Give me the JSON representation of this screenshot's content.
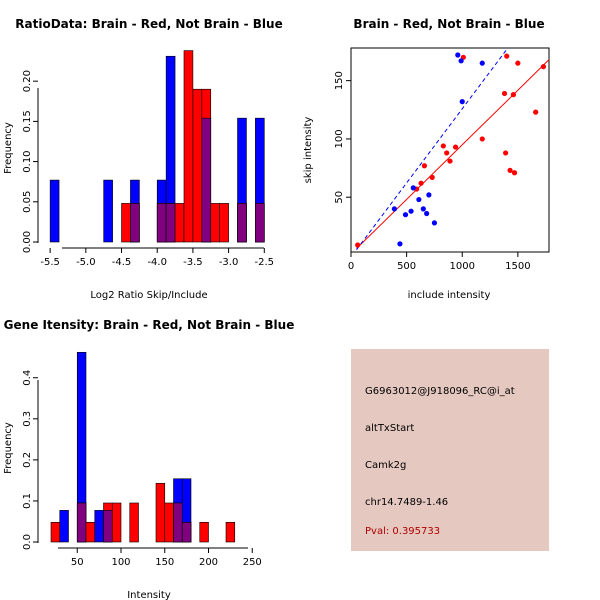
{
  "colors": {
    "brain": "#ff0000",
    "not_brain": "#0000ff",
    "overlap": "#800080",
    "panel_bg": "#e5c8c0",
    "pval_text": "#b00000"
  },
  "chart_data": [
    {
      "type": "bar",
      "title": "RatioData: Brain - Red, Not Brain - Blue",
      "xlabel": "Log2 Ratio Skip/Include",
      "ylabel": "Frequency",
      "xlim": [
        -5.6,
        -2.35
      ],
      "ylim": [
        0,
        0.24
      ],
      "xticks": [
        -5.5,
        -5.0,
        -4.5,
        -4.0,
        -3.5,
        -3.0,
        -2.5
      ],
      "xtick_labels": [
        "-5.5",
        "-5.0",
        "-4.5",
        "-4.0",
        "-3.5",
        "-3.0",
        "-2.5"
      ],
      "yticks": [
        0,
        0.05,
        0.1,
        0.15,
        0.2
      ],
      "ytick_labels": [
        "0.00",
        "0.05",
        "0.10",
        "0.15",
        "0.20"
      ],
      "bin_edges": [
        -5.5,
        -5.375,
        -5.25,
        -5.125,
        -5.0,
        -4.875,
        -4.75,
        -4.625,
        -4.5,
        -4.375,
        -4.25,
        -4.125,
        -4.0,
        -3.875,
        -3.75,
        -3.625,
        -3.5,
        -3.375,
        -3.25,
        -3.125,
        -3.0,
        -2.875,
        -2.75,
        -2.625,
        -2.5
      ],
      "series": [
        {
          "name": "Not Brain",
          "color": "#0000ff",
          "values": [
            0.077,
            0,
            0,
            0,
            0,
            0,
            0.077,
            0,
            0,
            0.077,
            0,
            0,
            0.077,
            0.231,
            0,
            0,
            0,
            0.154,
            0,
            0,
            0,
            0.154,
            0,
            0.154
          ]
        },
        {
          "name": "Brain",
          "color": "#ff0000",
          "values": [
            0,
            0,
            0,
            0,
            0,
            0,
            0,
            0,
            0.048,
            0.048,
            0,
            0,
            0.048,
            0.048,
            0.048,
            0.238,
            0.19,
            0.19,
            0.048,
            0.048,
            0,
            0.048,
            0,
            0.048
          ]
        }
      ]
    },
    {
      "type": "scatter",
      "title": "Brain - Red, Not Brain - Blue",
      "xlabel": "include intensity",
      "ylabel": "skip intensity",
      "xlim": [
        0,
        1780
      ],
      "ylim": [
        3,
        178
      ],
      "xticks": [
        0,
        500,
        1000,
        1500
      ],
      "xtick_labels": [
        "0",
        "500",
        "1000",
        "1500"
      ],
      "yticks": [
        50,
        100,
        150
      ],
      "ytick_labels": [
        "50",
        "100",
        "150"
      ],
      "series": [
        {
          "name": "Brain",
          "color": "#ff0000",
          "x": [
            60,
            590,
            630,
            660,
            730,
            830,
            860,
            890,
            940,
            1010,
            1180,
            1380,
            1390,
            1400,
            1430,
            1460,
            1470,
            1500,
            1660,
            1730
          ],
          "y": [
            9,
            57,
            62,
            77,
            67,
            94,
            88,
            81,
            93,
            170,
            100,
            139,
            88,
            171,
            73,
            138,
            71,
            165,
            123,
            162
          ],
          "fit": {
            "x": [
              50,
              1780
            ],
            "y": [
              6,
              168
            ]
          }
        },
        {
          "name": "Not Brain",
          "color": "#0000ff",
          "x": [
            390,
            440,
            490,
            540,
            560,
            610,
            650,
            680,
            700,
            750,
            960,
            990,
            1000,
            1180
          ],
          "y": [
            40,
            10,
            35,
            38,
            58,
            48,
            40,
            36,
            52,
            28,
            172,
            167,
            132,
            165
          ],
          "fit": {
            "x": [
              50,
              1410
            ],
            "y": [
              5,
              178
            ]
          }
        }
      ]
    },
    {
      "type": "bar",
      "title": "Gene Itensity: Brain - Red, Not Brain - Blue",
      "xlabel": "Intensity",
      "ylabel": "Frequency",
      "xlim": [
        12,
        252
      ],
      "ylim": [
        0,
        0.47
      ],
      "xticks": [
        50,
        100,
        150,
        200,
        250
      ],
      "xtick_labels": [
        "50",
        "100",
        "150",
        "200",
        "250"
      ],
      "yticks": [
        0,
        0.1,
        0.2,
        0.3,
        0.4
      ],
      "ytick_labels": [
        "0.0",
        "0.1",
        "0.2",
        "0.3",
        "0.4"
      ],
      "bin_edges": [
        20,
        30,
        40,
        50,
        60,
        70,
        80,
        90,
        100,
        110,
        120,
        130,
        140,
        150,
        160,
        170,
        180,
        190,
        200,
        210,
        220,
        230,
        240
      ],
      "series": [
        {
          "name": "Not Brain",
          "color": "#0000ff",
          "values": [
            0,
            0.077,
            0,
            0.462,
            0,
            0.077,
            0.077,
            0,
            0,
            0,
            0,
            0,
            0,
            0,
            0.154,
            0.154,
            0,
            0,
            0,
            0,
            0,
            0
          ]
        },
        {
          "name": "Brain",
          "color": "#ff0000",
          "values": [
            0.048,
            0,
            0,
            0.095,
            0.048,
            0,
            0.095,
            0.095,
            0,
            0.095,
            0,
            0,
            0.143,
            0.095,
            0.095,
            0.048,
            0,
            0.048,
            0,
            0,
            0.048,
            0
          ]
        }
      ]
    }
  ],
  "info": {
    "probe_id": "G6963012@J918096_RC@i_at",
    "event_type": "altTxStart",
    "gene": "Camk2g",
    "location": "chr14.7489-1.46",
    "pval": "Pval: 0.395733"
  }
}
